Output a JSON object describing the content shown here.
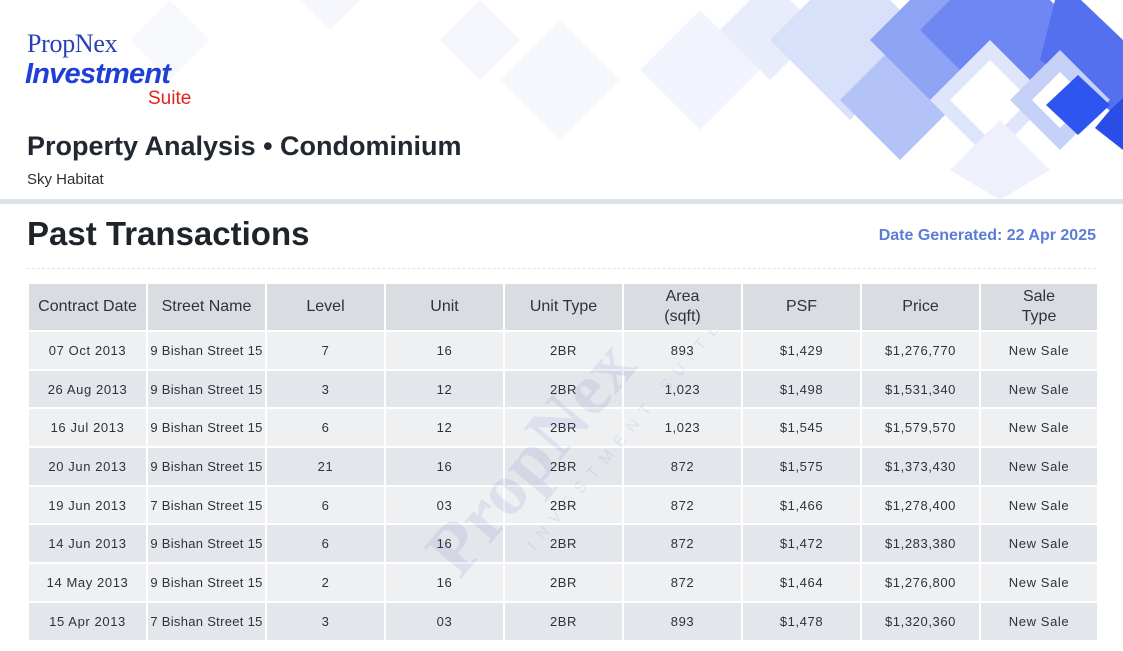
{
  "header": {
    "logo": {
      "brand": "PropNex",
      "product": "Investment",
      "suffix": "Suite"
    },
    "title": "Property Analysis • Condominium",
    "property_name": "Sky Habitat"
  },
  "section": {
    "title": "Past Transactions",
    "date_generated": "Date Generated: 22 Apr 2025"
  },
  "table": {
    "columns": [
      "Contract Date",
      "Street Name",
      "Level",
      "Unit",
      "Unit Type",
      "Area (sqft)",
      "PSF",
      "Price",
      "Sale Type"
    ],
    "rows": [
      [
        "07 Oct 2013",
        "9 Bishan Street 15",
        "7",
        "16",
        "2BR",
        "893",
        "$1,429",
        "$1,276,770",
        "New Sale"
      ],
      [
        "26 Aug 2013",
        "9 Bishan Street 15",
        "3",
        "12",
        "2BR",
        "1,023",
        "$1,498",
        "$1,531,340",
        "New Sale"
      ],
      [
        "16 Jul 2013",
        "9 Bishan Street 15",
        "6",
        "12",
        "2BR",
        "1,023",
        "$1,545",
        "$1,579,570",
        "New Sale"
      ],
      [
        "20 Jun 2013",
        "9 Bishan Street 15",
        "21",
        "16",
        "2BR",
        "872",
        "$1,575",
        "$1,373,430",
        "New Sale"
      ],
      [
        "19 Jun 2013",
        "7 Bishan Street 15",
        "6",
        "03",
        "2BR",
        "872",
        "$1,466",
        "$1,278,400",
        "New Sale"
      ],
      [
        "14 Jun 2013",
        "9 Bishan Street 15",
        "6",
        "16",
        "2BR",
        "872",
        "$1,472",
        "$1,283,380",
        "New Sale"
      ],
      [
        "14 May 2013",
        "9 Bishan Street 15",
        "2",
        "16",
        "2BR",
        "872",
        "$1,464",
        "$1,276,800",
        "New Sale"
      ],
      [
        "15 Apr 2013",
        "7 Bishan Street 15",
        "3",
        "03",
        "2BR",
        "893",
        "$1,478",
        "$1,320,360",
        "New Sale"
      ]
    ]
  },
  "watermark": {
    "brand": "PropNex",
    "tagline": "INVESTMENT SUITE"
  },
  "colors": {
    "brand_blue": "#2b3fb6",
    "investment_blue": "#1f3fd6",
    "suite_red": "#e0261b",
    "date_blue": "#5b7dd6",
    "header_cell_bg": "#d9dde2",
    "row_odd_bg": "#eef0f2",
    "row_even_bg": "#e3e6ea"
  }
}
